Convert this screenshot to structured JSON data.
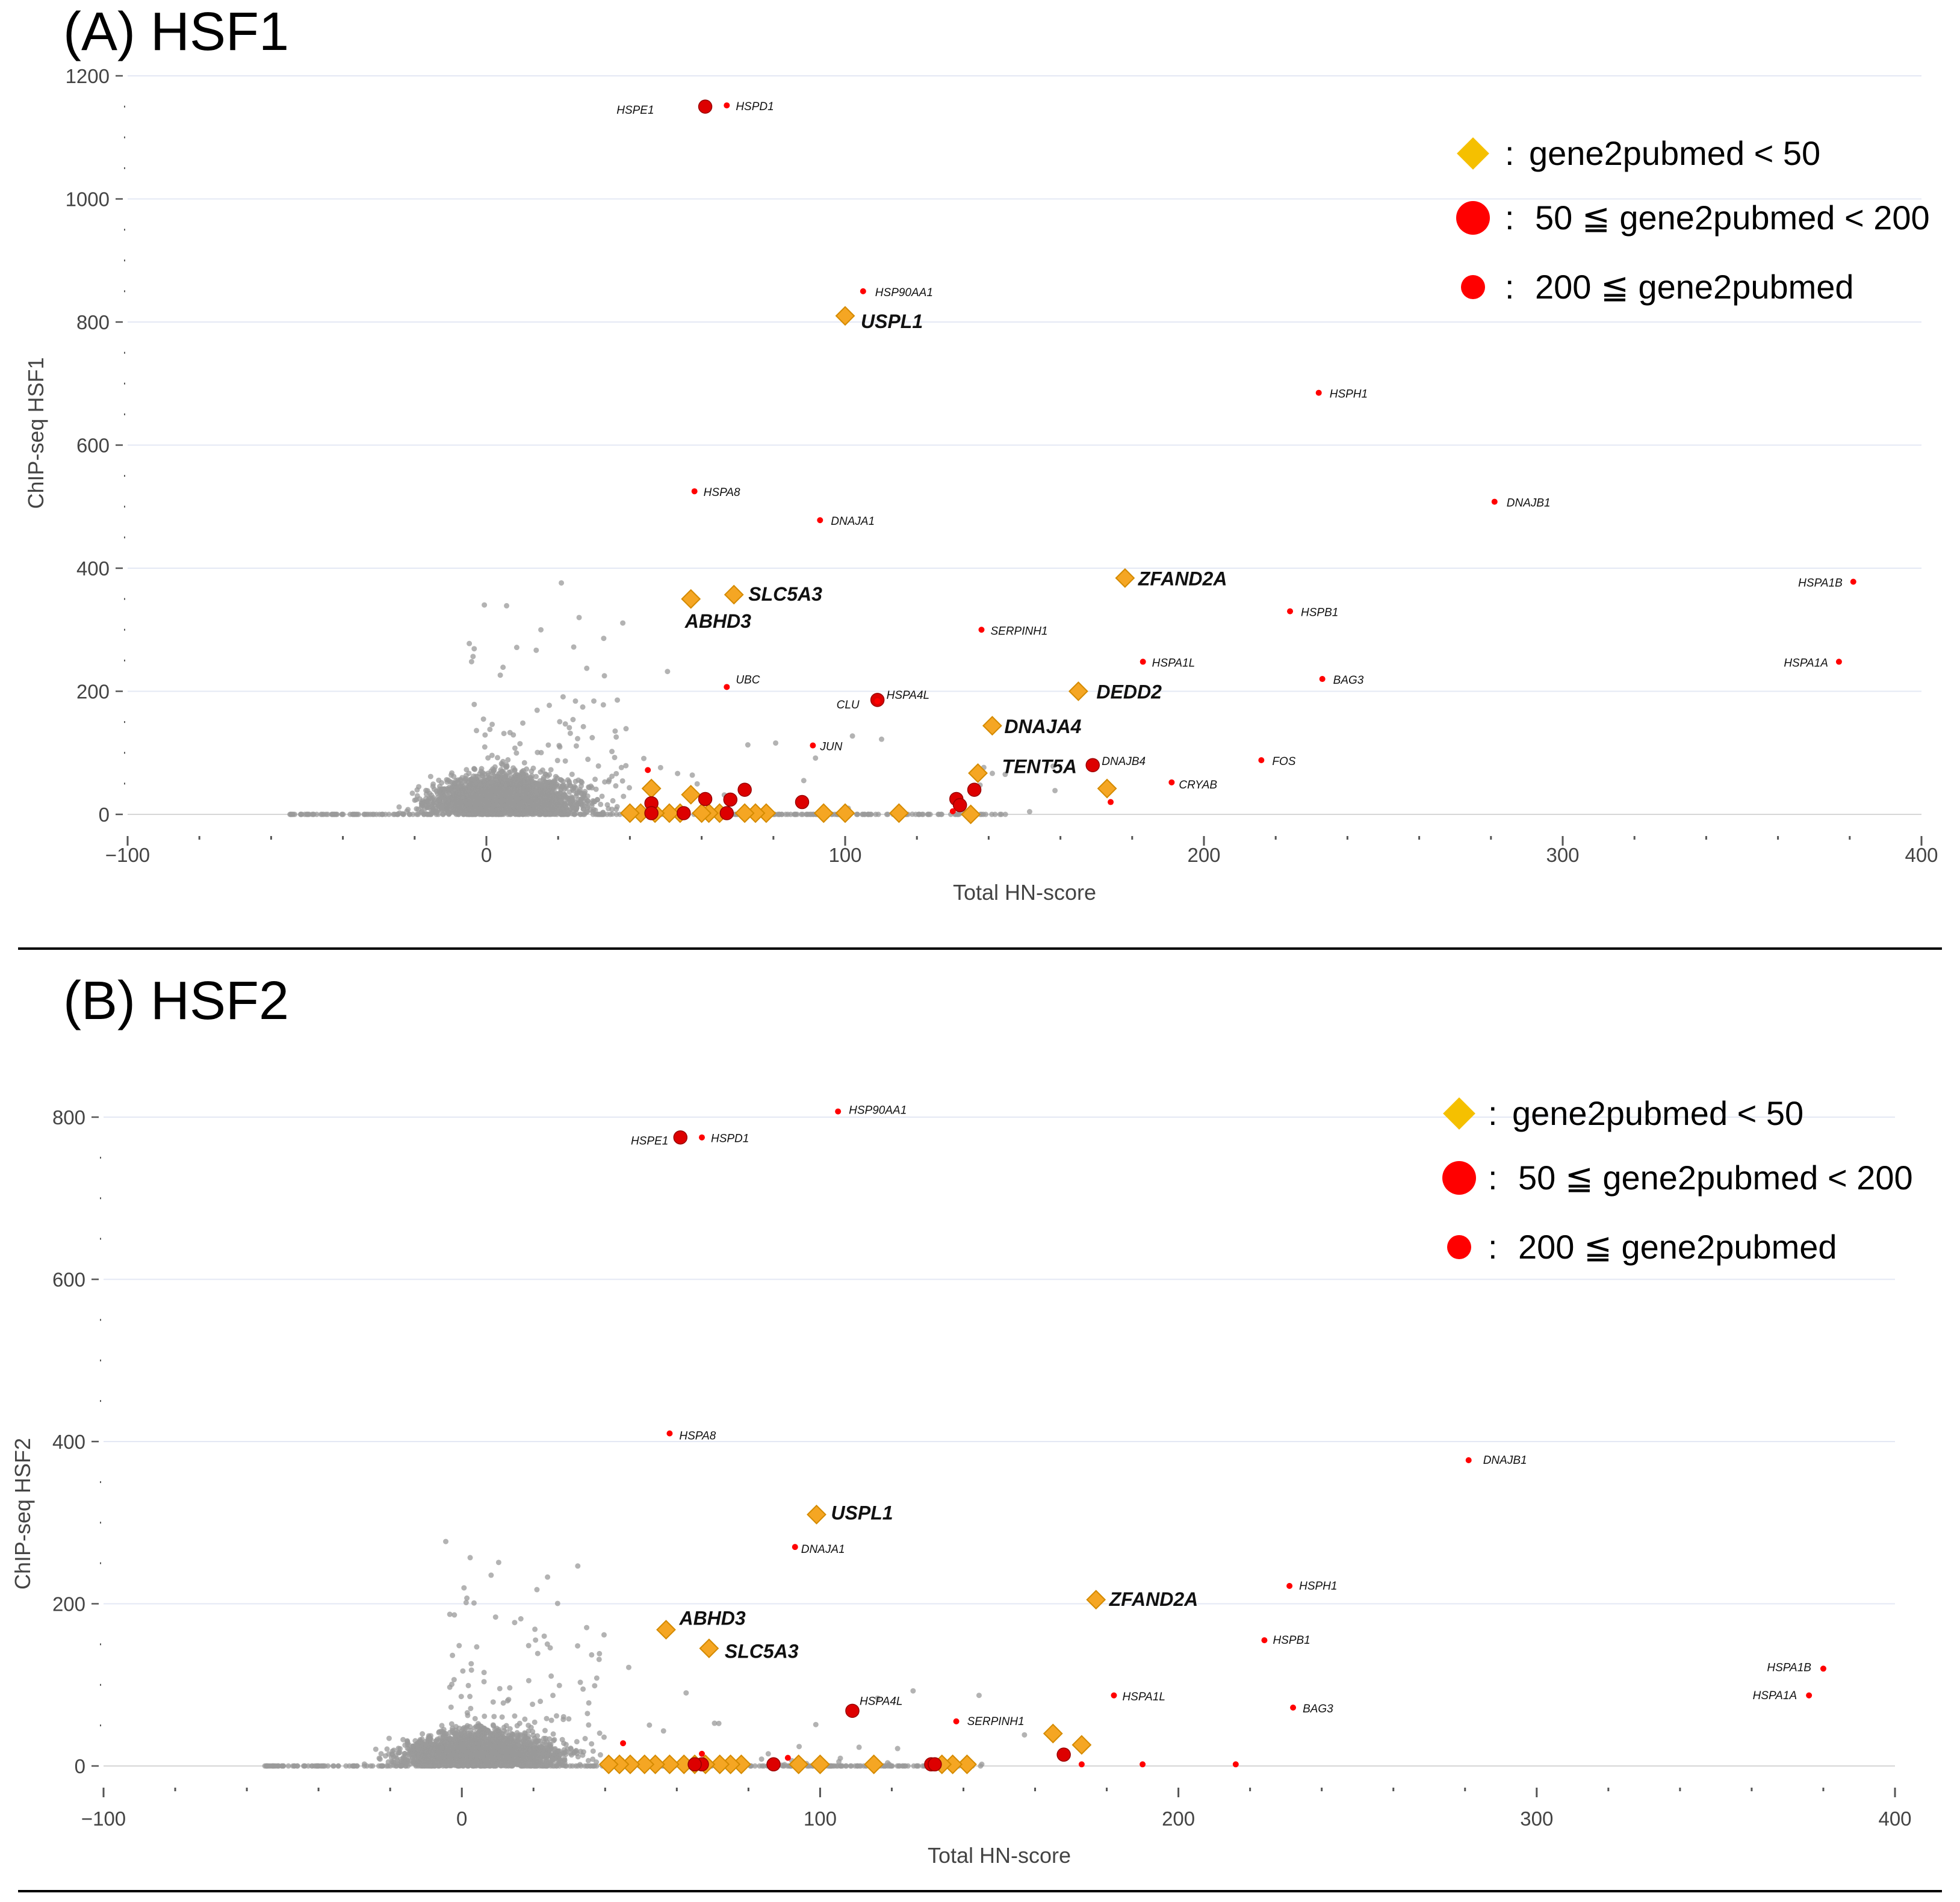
{
  "chart_data": [
    {
      "type": "scatter",
      "title": "(A) HSF1",
      "xlabel": "Total HN-score",
      "ylabel": "ChIP-seq HSF1",
      "xlim": [
        -100,
        400
      ],
      "ylim": [
        0,
        1200
      ],
      "xticks": [
        -100,
        0,
        100,
        200,
        300,
        400
      ],
      "yticks": [
        0,
        200,
        400,
        600,
        800,
        1000,
        1200
      ],
      "grid": true,
      "legend": {
        "position": "top-right",
        "entries": [
          {
            "symbol": "diamond",
            "label": "gene2pubmed < 50"
          },
          {
            "symbol": "large-circle",
            "label": "50 ≦ gene2pubmed < 200"
          },
          {
            "symbol": "small-circle",
            "label": "200 ≦ gene2pubmed"
          }
        ]
      },
      "series": [
        {
          "name": "gene2pubmed < 50",
          "marker": "diamond",
          "color": "#f5a623",
          "points": [
            {
              "label": "USPL1",
              "x": 100,
              "y": 810
            },
            {
              "label": "ZFAND2A",
              "x": 178,
              "y": 384
            },
            {
              "label": "SLC5A3",
              "x": 69,
              "y": 357
            },
            {
              "label": "ABHD3",
              "x": 57,
              "y": 350
            },
            {
              "label": "DEDD2",
              "x": 165,
              "y": 200
            },
            {
              "label": "DNAJA4",
              "x": 141,
              "y": 144
            },
            {
              "label": "TENT5A",
              "x": 137,
              "y": 67
            },
            {
              "label": "",
              "x": 173,
              "y": 42
            },
            {
              "label": "",
              "x": 46,
              "y": 42
            },
            {
              "label": "",
              "x": 57,
              "y": 32
            },
            {
              "label": "",
              "x": 135,
              "y": 0
            },
            {
              "label": "",
              "x": 115,
              "y": 2
            },
            {
              "label": "",
              "x": 100,
              "y": 2
            },
            {
              "label": "",
              "x": 94,
              "y": 2
            },
            {
              "label": "",
              "x": 78,
              "y": 2
            },
            {
              "label": "",
              "x": 75,
              "y": 2
            },
            {
              "label": "",
              "x": 72,
              "y": 2
            },
            {
              "label": "",
              "x": 65,
              "y": 2
            },
            {
              "label": "",
              "x": 62,
              "y": 2
            },
            {
              "label": "",
              "x": 60,
              "y": 2
            },
            {
              "label": "",
              "x": 54,
              "y": 2
            },
            {
              "label": "",
              "x": 51,
              "y": 2
            },
            {
              "label": "",
              "x": 47,
              "y": 2
            },
            {
              "label": "",
              "x": 43,
              "y": 2
            },
            {
              "label": "",
              "x": 40,
              "y": 2
            }
          ]
        },
        {
          "name": "50 ≦ gene2pubmed < 200",
          "marker": "large-circle",
          "color": "#dd0000",
          "points": [
            {
              "label": "HSPE1",
              "x": 61,
              "y": 1150
            },
            {
              "label": "HSPA4L",
              "x": 109,
              "y": 186
            },
            {
              "label": "DNAJB4",
              "x": 169,
              "y": 80
            },
            {
              "label": "",
              "x": 88,
              "y": 20
            },
            {
              "label": "",
              "x": 72,
              "y": 40
            },
            {
              "label": "",
              "x": 68,
              "y": 24
            },
            {
              "label": "",
              "x": 61,
              "y": 25
            },
            {
              "label": "",
              "x": 46,
              "y": 18
            },
            {
              "label": "",
              "x": 131,
              "y": 25
            },
            {
              "label": "",
              "x": 132,
              "y": 15
            },
            {
              "label": "",
              "x": 136,
              "y": 40
            },
            {
              "label": "",
              "x": 46,
              "y": 2
            },
            {
              "label": "",
              "x": 55,
              "y": 2
            },
            {
              "label": "",
              "x": 67,
              "y": 2
            }
          ]
        },
        {
          "name": "200 ≦ gene2pubmed",
          "marker": "small-circle",
          "color": "#ff0000",
          "points": [
            {
              "label": "HSPD1",
              "x": 67,
              "y": 1152
            },
            {
              "label": "HSP90AA1",
              "x": 105,
              "y": 850
            },
            {
              "label": "HSPH1",
              "x": 232,
              "y": 685
            },
            {
              "label": "DNAJB1",
              "x": 281,
              "y": 508
            },
            {
              "label": "HSPA8",
              "x": 58,
              "y": 525
            },
            {
              "label": "DNAJA1",
              "x": 93,
              "y": 478
            },
            {
              "label": "HSPA1B",
              "x": 381,
              "y": 378
            },
            {
              "label": "HSPB1",
              "x": 224,
              "y": 330
            },
            {
              "label": "SERPINH1",
              "x": 138,
              "y": 300
            },
            {
              "label": "HSPA1L",
              "x": 183,
              "y": 248
            },
            {
              "label": "HSPA1A",
              "x": 377,
              "y": 248
            },
            {
              "label": "BAG3",
              "x": 233,
              "y": 220
            },
            {
              "label": "UBC",
              "x": 67,
              "y": 207
            },
            {
              "label": "CLU",
              "x": 109,
              "y": 184
            },
            {
              "label": "JUN",
              "x": 91,
              "y": 112
            },
            {
              "label": "FOS",
              "x": 216,
              "y": 88
            },
            {
              "label": "CRYAB",
              "x": 191,
              "y": 52
            },
            {
              "label": "",
              "x": 174,
              "y": 20
            },
            {
              "label": "",
              "x": 45,
              "y": 72
            },
            {
              "label": "",
              "x": 130,
              "y": 5
            }
          ]
        }
      ]
    },
    {
      "type": "scatter",
      "title": "(B) HSF2",
      "xlabel": "Total HN-score",
      "ylabel": "ChIP-seq HSF2",
      "xlim": [
        -100,
        400
      ],
      "ylim": [
        0,
        800
      ],
      "xticks": [
        -100,
        0,
        100,
        200,
        300,
        400
      ],
      "yticks": [
        0,
        200,
        400,
        600,
        800
      ],
      "grid": true,
      "legend": {
        "position": "top-right",
        "entries": [
          {
            "symbol": "diamond",
            "label": "gene2pubmed < 50"
          },
          {
            "symbol": "large-circle",
            "label": "50 ≦ gene2pubmed < 200"
          },
          {
            "symbol": "small-circle",
            "label": "200 ≦ gene2pubmed"
          }
        ]
      },
      "series": [
        {
          "name": "gene2pubmed < 50",
          "marker": "diamond",
          "color": "#f5a623",
          "points": [
            {
              "label": "USPL1",
              "x": 99,
              "y": 310
            },
            {
              "label": "ZFAND2A",
              "x": 177,
              "y": 205
            },
            {
              "label": "ABHD3",
              "x": 57,
              "y": 168
            },
            {
              "label": "SLC5A3",
              "x": 69,
              "y": 145
            },
            {
              "label": "",
              "x": 165,
              "y": 40
            },
            {
              "label": "",
              "x": 173,
              "y": 26
            },
            {
              "label": "",
              "x": 141,
              "y": 2
            },
            {
              "label": "",
              "x": 137,
              "y": 2
            },
            {
              "label": "",
              "x": 134,
              "y": 2
            },
            {
              "label": "",
              "x": 115,
              "y": 2
            },
            {
              "label": "",
              "x": 100,
              "y": 2
            },
            {
              "label": "",
              "x": 94,
              "y": 2
            },
            {
              "label": "",
              "x": 78,
              "y": 2
            },
            {
              "label": "",
              "x": 75,
              "y": 2
            },
            {
              "label": "",
              "x": 72,
              "y": 2
            },
            {
              "label": "",
              "x": 68,
              "y": 2
            },
            {
              "label": "",
              "x": 65,
              "y": 2
            },
            {
              "label": "",
              "x": 62,
              "y": 2
            },
            {
              "label": "",
              "x": 58,
              "y": 2
            },
            {
              "label": "",
              "x": 54,
              "y": 2
            },
            {
              "label": "",
              "x": 51,
              "y": 2
            },
            {
              "label": "",
              "x": 47,
              "y": 2
            },
            {
              "label": "",
              "x": 44,
              "y": 2
            },
            {
              "label": "",
              "x": 41,
              "y": 2
            }
          ]
        },
        {
          "name": "50 ≦ gene2pubmed < 200",
          "marker": "large-circle",
          "color": "#dd0000",
          "points": [
            {
              "label": "HSPE1",
              "x": 61,
              "y": 775
            },
            {
              "label": "HSPA4L",
              "x": 109,
              "y": 68
            },
            {
              "label": "",
              "x": 168,
              "y": 14
            },
            {
              "label": "",
              "x": 87,
              "y": 2
            },
            {
              "label": "",
              "x": 67,
              "y": 2
            },
            {
              "label": "",
              "x": 65,
              "y": 2
            },
            {
              "label": "",
              "x": 131,
              "y": 2
            },
            {
              "label": "",
              "x": 132,
              "y": 2
            }
          ]
        },
        {
          "name": "200 ≦ gene2pubmed",
          "marker": "small-circle",
          "color": "#ff0000",
          "points": [
            {
              "label": "HSP90AA1",
              "x": 105,
              "y": 807
            },
            {
              "label": "HSPD1",
              "x": 67,
              "y": 775
            },
            {
              "label": "HSPA8",
              "x": 58,
              "y": 410
            },
            {
              "label": "DNAJB1",
              "x": 281,
              "y": 377
            },
            {
              "label": "DNAJA1",
              "x": 93,
              "y": 270
            },
            {
              "label": "HSPH1",
              "x": 231,
              "y": 222
            },
            {
              "label": "HSPB1",
              "x": 224,
              "y": 155
            },
            {
              "label": "HSPA1B",
              "x": 380,
              "y": 120
            },
            {
              "label": "HSPA1A",
              "x": 376,
              "y": 87
            },
            {
              "label": "HSPA1L",
              "x": 182,
              "y": 87
            },
            {
              "label": "BAG3",
              "x": 232,
              "y": 72
            },
            {
              "label": "SERPINH1",
              "x": 138,
              "y": 55
            },
            {
              "label": "",
              "x": 45,
              "y": 28
            },
            {
              "label": "",
              "x": 67,
              "y": 15
            },
            {
              "label": "",
              "x": 91,
              "y": 10
            },
            {
              "label": "",
              "x": 173,
              "y": 2
            },
            {
              "label": "",
              "x": 190,
              "y": 2
            },
            {
              "label": "",
              "x": 216,
              "y": 2
            }
          ]
        }
      ],
      "background_points": {
        "color": "#9a9a9a",
        "note": "dense gray cloud of non-highlighted genes"
      }
    }
  ]
}
